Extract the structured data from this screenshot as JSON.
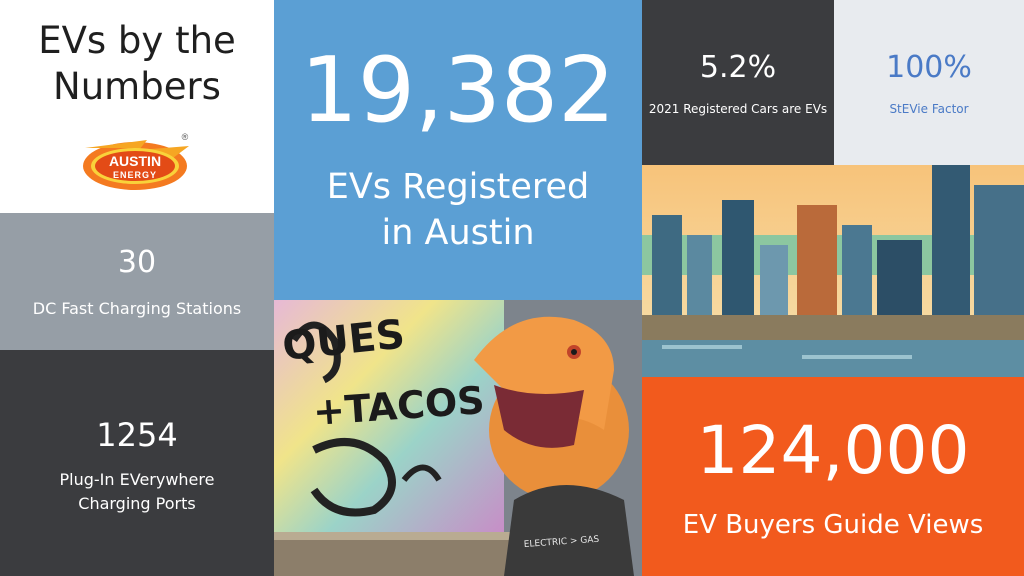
{
  "title_tile": {
    "title_line1": "EVs by the",
    "title_line2": "Numbers",
    "logo_line1": "AUSTIN",
    "logo_line2": "ENERGY",
    "logo_mark": "®"
  },
  "registered_tile": {
    "value": "19,382",
    "caption_line1": "EVs Registered",
    "caption_line2": "in Austin"
  },
  "share_tile": {
    "value": "5.2%",
    "caption": "2021 Registered Cars are EVs"
  },
  "stevie_tile": {
    "value": "100%",
    "caption": "StEVie Factor"
  },
  "dc_tile": {
    "value": "30",
    "caption": "DC Fast Charging Stations"
  },
  "ports_tile": {
    "value": "1254",
    "caption_line1": "Plug-In EVerywhere",
    "caption_line2": "Charging Ports"
  },
  "views_tile": {
    "value": "124,000",
    "caption": "EV Buyers Guide Views"
  },
  "dino_photo": {
    "graffiti_line1": "QUES",
    "graffiti_line2": "+TACOS",
    "shirt_text": "ELECTRIC > GAS"
  },
  "colors": {
    "blue": "#5b9fd4",
    "dark": "#3b3c3f",
    "gray": "#969ea6",
    "light": "#e8ebef",
    "orange": "#f25a1d",
    "stevie_text": "#4a7ac6"
  }
}
